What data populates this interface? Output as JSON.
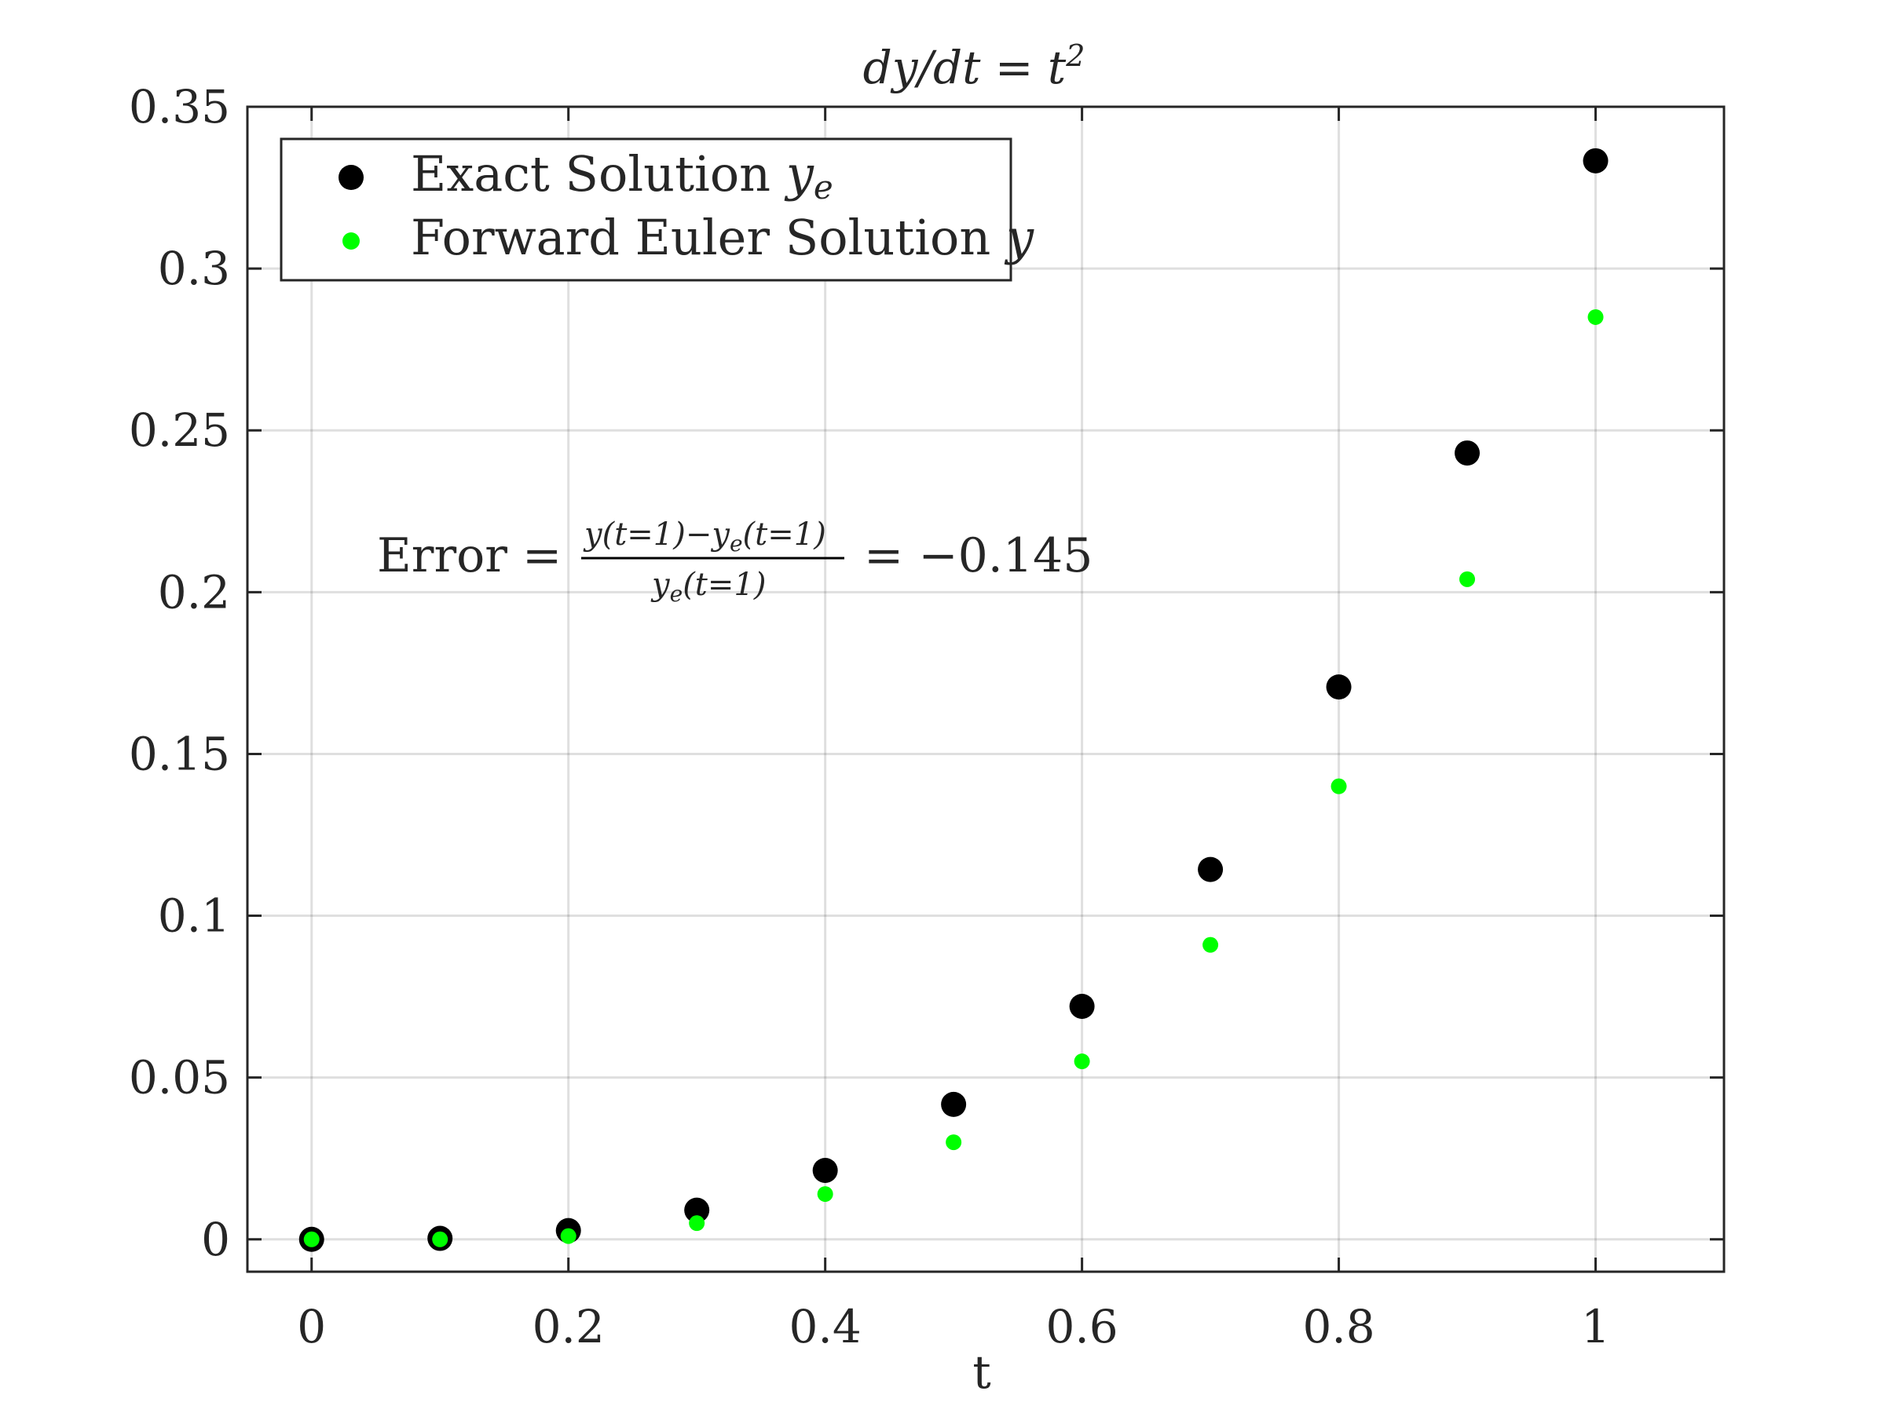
{
  "chart_data": {
    "type": "scatter",
    "title": "dy/dt = t²",
    "xlabel": "t",
    "ylabel": "",
    "xlim": [
      -0.05,
      1.1
    ],
    "ylim": [
      -0.01,
      0.35
    ],
    "xticks": [
      0,
      0.2,
      0.4,
      0.6,
      0.8,
      1
    ],
    "xtick_labels": [
      "0",
      "0.2",
      "0.4",
      "0.6",
      "0.8",
      "1"
    ],
    "yticks": [
      0,
      0.05,
      0.1,
      0.15,
      0.2,
      0.25,
      0.3,
      0.35
    ],
    "ytick_labels": [
      "0",
      "0.05",
      "0.1",
      "0.15",
      "0.2",
      "0.25",
      "0.3",
      "0.35"
    ],
    "grid": true,
    "legend_position": "top-left",
    "x": [
      0,
      0.1,
      0.2,
      0.3,
      0.4,
      0.5,
      0.6,
      0.7,
      0.8,
      0.9,
      1.0
    ],
    "series": [
      {
        "name": "Exact Solution y_e",
        "legend_main": "Exact Solution ",
        "legend_var": "y",
        "legend_sub": "e",
        "color": "#000000",
        "values": [
          0,
          0.0003,
          0.0027,
          0.009,
          0.0213,
          0.0417,
          0.072,
          0.1143,
          0.1707,
          0.243,
          0.3333
        ]
      },
      {
        "name": "Forward Euler Solution y",
        "legend_main": "Forward Euler Solution ",
        "legend_var": "y",
        "legend_sub": "",
        "color": "#00ff00",
        "values": [
          0,
          0,
          0.001,
          0.005,
          0.014,
          0.03,
          0.055,
          0.091,
          0.14,
          0.204,
          0.285
        ]
      }
    ],
    "annotation": {
      "lhs": "Error =",
      "numerator": "y(t=1)−y",
      "numerator_sub": "e",
      "numerator_tail": "(t=1)",
      "denominator": "y",
      "denominator_sub": "e",
      "denominator_tail": "(t=1)",
      "rhs": "= −0.145"
    }
  }
}
